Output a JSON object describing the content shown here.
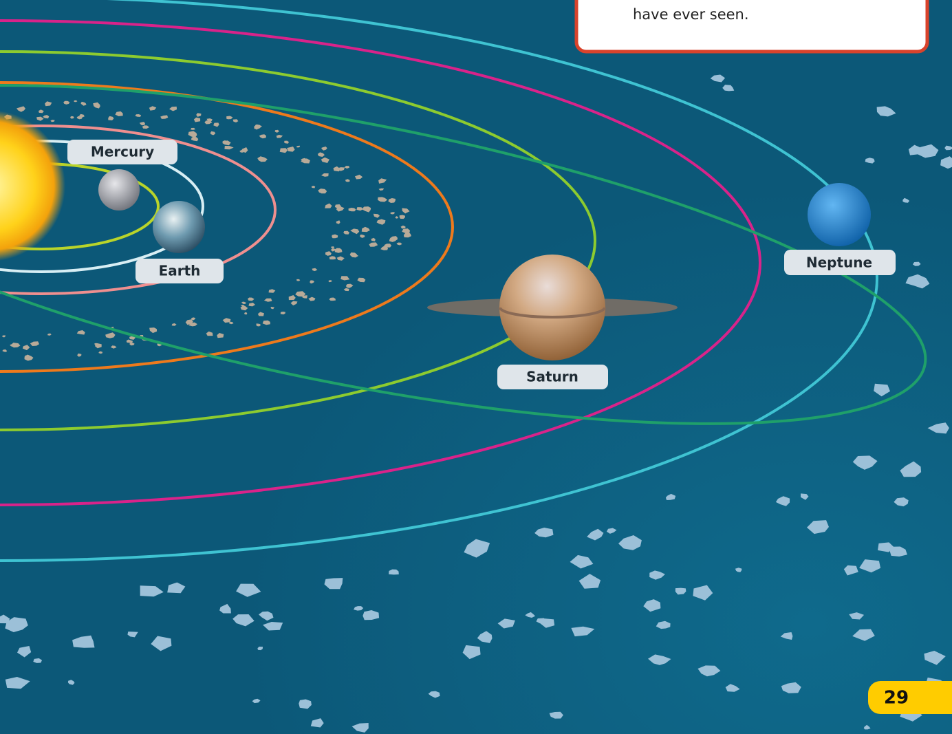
{
  "callout": {
    "text": "have ever seen."
  },
  "labels": {
    "mercury": "Mercury",
    "earth": "Earth",
    "saturn": "Saturn",
    "neptune": "Neptune"
  },
  "page_number": "29"
}
